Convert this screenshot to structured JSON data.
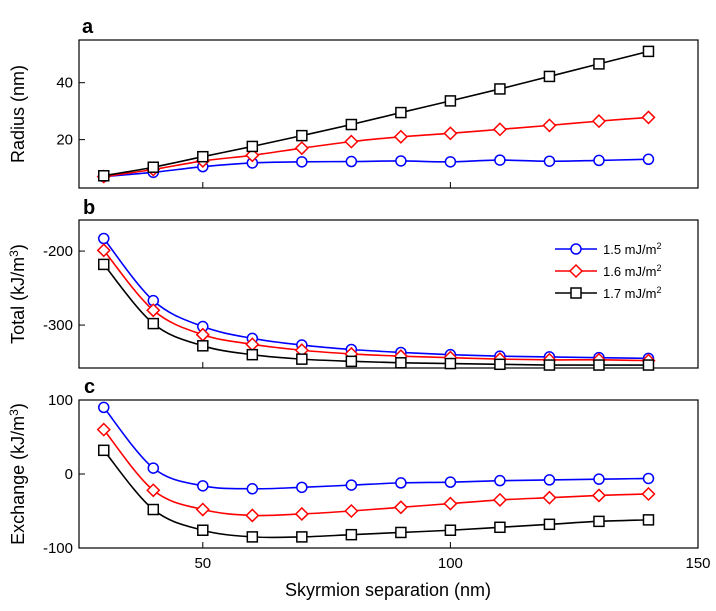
{
  "chart_data": [
    {
      "type": "line",
      "panel": "a",
      "ylabel": "Radius (nm)",
      "xlim": [
        25,
        150
      ],
      "ylim": [
        3,
        55
      ],
      "yticks": [
        20,
        40
      ],
      "x": [
        30,
        40,
        50,
        60,
        70,
        80,
        90,
        100,
        110,
        120,
        130,
        140
      ],
      "series": [
        {
          "name": "1.5 mJ/m2",
          "color": "#0000ff",
          "marker": "circle",
          "values": [
            7,
            8.5,
            10.5,
            11.8,
            12.2,
            12.3,
            12.5,
            12.2,
            12.8,
            12.4,
            12.7,
            13.1
          ]
        },
        {
          "name": "1.6 mJ/m2",
          "color": "#ff0000",
          "marker": "diamond",
          "values": [
            7,
            9.5,
            12.5,
            14.5,
            17,
            19.3,
            21,
            22.2,
            23.6,
            25,
            26.5,
            27.8
          ]
        },
        {
          "name": "1.7 mJ/m2",
          "color": "#000000",
          "marker": "square",
          "values": [
            7.3,
            10.3,
            14,
            17.6,
            21.4,
            25.3,
            29.5,
            33.6,
            37.8,
            42.2,
            46.6,
            51
          ]
        }
      ]
    },
    {
      "type": "line",
      "panel": "b",
      "ylabel_main": "Total (kJ/m",
      "ylabel_sup": "3",
      "ylabel_end": ")",
      "xlim": [
        25,
        150
      ],
      "ylim": [
        -358,
        -158
      ],
      "yticks": [
        -200,
        -300
      ],
      "x": [
        30,
        40,
        50,
        60,
        70,
        80,
        90,
        100,
        110,
        120,
        130,
        140
      ],
      "series": [
        {
          "name": "1.5 mJ/m2",
          "color": "#0000ff",
          "marker": "circle",
          "values": [
            -183,
            -267,
            -302,
            -318,
            -327,
            -333,
            -337,
            -340,
            -342,
            -343,
            -344,
            -345
          ]
        },
        {
          "name": "1.6 mJ/m2",
          "color": "#ff0000",
          "marker": "diamond",
          "values": [
            -199,
            -280,
            -313,
            -326,
            -334,
            -339,
            -342,
            -344,
            -346,
            -347,
            -347,
            -348
          ]
        },
        {
          "name": "1.7 mJ/m2",
          "color": "#000000",
          "marker": "square",
          "values": [
            -218,
            -298,
            -328,
            -340,
            -346,
            -349,
            -351,
            -352,
            -353,
            -354,
            -354,
            -354
          ]
        }
      ]
    },
    {
      "type": "line",
      "panel": "c",
      "ylabel_main": "Exchange (kJ/m",
      "ylabel_sup": "3",
      "ylabel_end": ")",
      "xlabel": "Skyrmion separation (nm)",
      "xlim": [
        25,
        150
      ],
      "xticks": [
        50,
        100,
        150
      ],
      "ylim": [
        -100,
        100
      ],
      "yticks": [
        100,
        0,
        -100
      ],
      "x": [
        30,
        40,
        50,
        60,
        70,
        80,
        90,
        100,
        110,
        120,
        130,
        140
      ],
      "series": [
        {
          "name": "1.5 mJ/m2",
          "color": "#0000ff",
          "marker": "circle",
          "values": [
            90,
            8,
            -16,
            -20,
            -18,
            -15,
            -12,
            -11,
            -9,
            -8,
            -7,
            -6
          ]
        },
        {
          "name": "1.6 mJ/m2",
          "color": "#ff0000",
          "marker": "diamond",
          "values": [
            60,
            -22,
            -48,
            -56,
            -54,
            -50,
            -45,
            -40,
            -35,
            -32,
            -29,
            -27
          ]
        },
        {
          "name": "1.7 mJ/m2",
          "color": "#000000",
          "marker": "square",
          "values": [
            32,
            -48,
            -76,
            -85,
            -85,
            -82,
            -79,
            -76,
            -72,
            -68,
            -64,
            -62
          ]
        }
      ]
    }
  ],
  "legend": {
    "placement": "panel-b-top-right",
    "entries": [
      {
        "main": "1.5 mJ/m",
        "sup": "2",
        "color": "#0000ff",
        "marker": "circle"
      },
      {
        "main": "1.6 mJ/m",
        "sup": "2",
        "color": "#ff0000",
        "marker": "diamond"
      },
      {
        "main": "1.7 mJ/m",
        "sup": "2",
        "color": "#000000",
        "marker": "square"
      }
    ]
  }
}
